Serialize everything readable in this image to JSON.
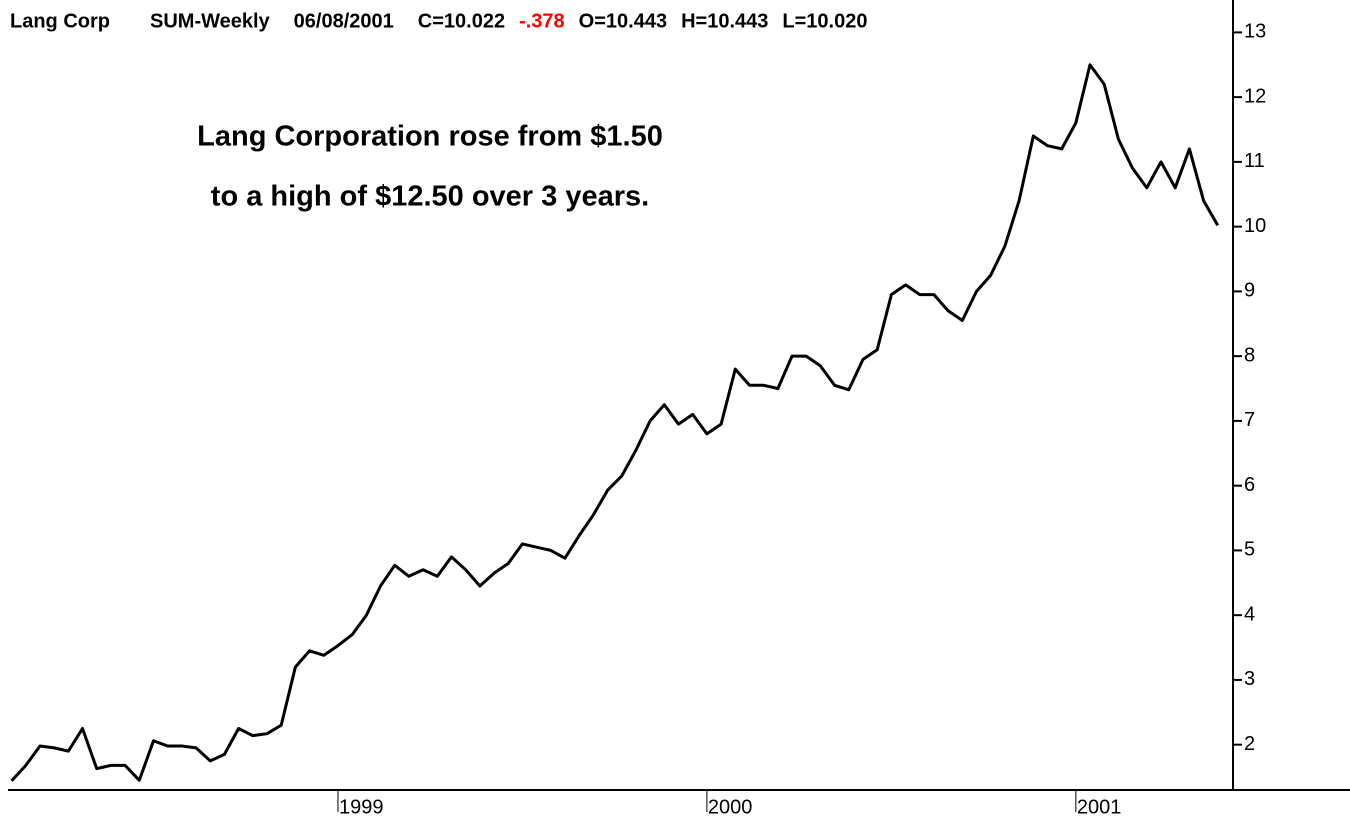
{
  "chart_data": {
    "type": "line",
    "title": "Lang Corp",
    "header_fields": [
      {
        "text": "SUM-Weekly",
        "color": "#000000"
      },
      {
        "text": "06/08/2001",
        "color": "#000000"
      },
      {
        "text": "C=10.022",
        "color": "#000000"
      },
      {
        "text": "-.378",
        "color": "#ff0000"
      },
      {
        "text": "O=10.443",
        "color": "#000000"
      },
      {
        "text": "H=10.443",
        "color": "#000000"
      },
      {
        "text": "L=10.020",
        "color": "#000000"
      }
    ],
    "annotations": [
      "Lang Corporation rose from $1.50",
      "to a high of $12.50 over 3 years."
    ],
    "categories": [
      null,
      null,
      null,
      null,
      null,
      null,
      null,
      null,
      null,
      null,
      null,
      null,
      null,
      null,
      null,
      null,
      null,
      null,
      null,
      null,
      null,
      null,
      null,
      "1999",
      null,
      null,
      null,
      null,
      null,
      null,
      null,
      null,
      null,
      null,
      null,
      null,
      null,
      null,
      null,
      null,
      null,
      null,
      null,
      null,
      null,
      null,
      null,
      null,
      null,
      "2000",
      null,
      null,
      null,
      null,
      null,
      null,
      null,
      null,
      null,
      null,
      null,
      null,
      null,
      null,
      null,
      null,
      null,
      null,
      null,
      null,
      null,
      null,
      null,
      null,
      null,
      "2001",
      null,
      null,
      null,
      null,
      null,
      null,
      null,
      null,
      null,
      null
    ],
    "series": [
      {
        "name": "Lang Corp",
        "color": "#000000",
        "values": [
          1.44,
          1.68,
          1.98,
          1.95,
          1.9,
          2.25,
          1.63,
          1.68,
          1.68,
          1.45,
          2.06,
          1.98,
          1.98,
          1.95,
          1.75,
          1.85,
          2.25,
          2.14,
          2.17,
          2.3,
          3.2,
          3.45,
          3.38,
          3.53,
          3.7,
          4.0,
          4.45,
          4.77,
          4.6,
          4.7,
          4.6,
          4.9,
          4.7,
          4.45,
          4.65,
          4.8,
          5.1,
          5.05,
          5.0,
          4.88,
          5.23,
          5.55,
          5.93,
          6.15,
          6.55,
          7.0,
          7.25,
          6.95,
          7.1,
          6.8,
          6.95,
          7.8,
          7.55,
          7.55,
          7.5,
          8.0,
          8.0,
          7.85,
          7.55,
          7.48,
          7.95,
          8.1,
          8.95,
          9.1,
          8.95,
          8.95,
          8.7,
          8.55,
          9.0,
          9.25,
          9.7,
          10.4,
          11.4,
          11.25,
          11.2,
          11.6,
          12.5,
          12.2,
          11.35,
          10.9,
          10.6,
          11.0,
          10.6,
          11.2,
          10.4,
          10.02
        ]
      }
    ],
    "ylim": [
      1.3,
      13.5
    ],
    "yticks": [
      2,
      3,
      4,
      5,
      6,
      7,
      8,
      9,
      10,
      11,
      12,
      13
    ],
    "grid": false
  }
}
